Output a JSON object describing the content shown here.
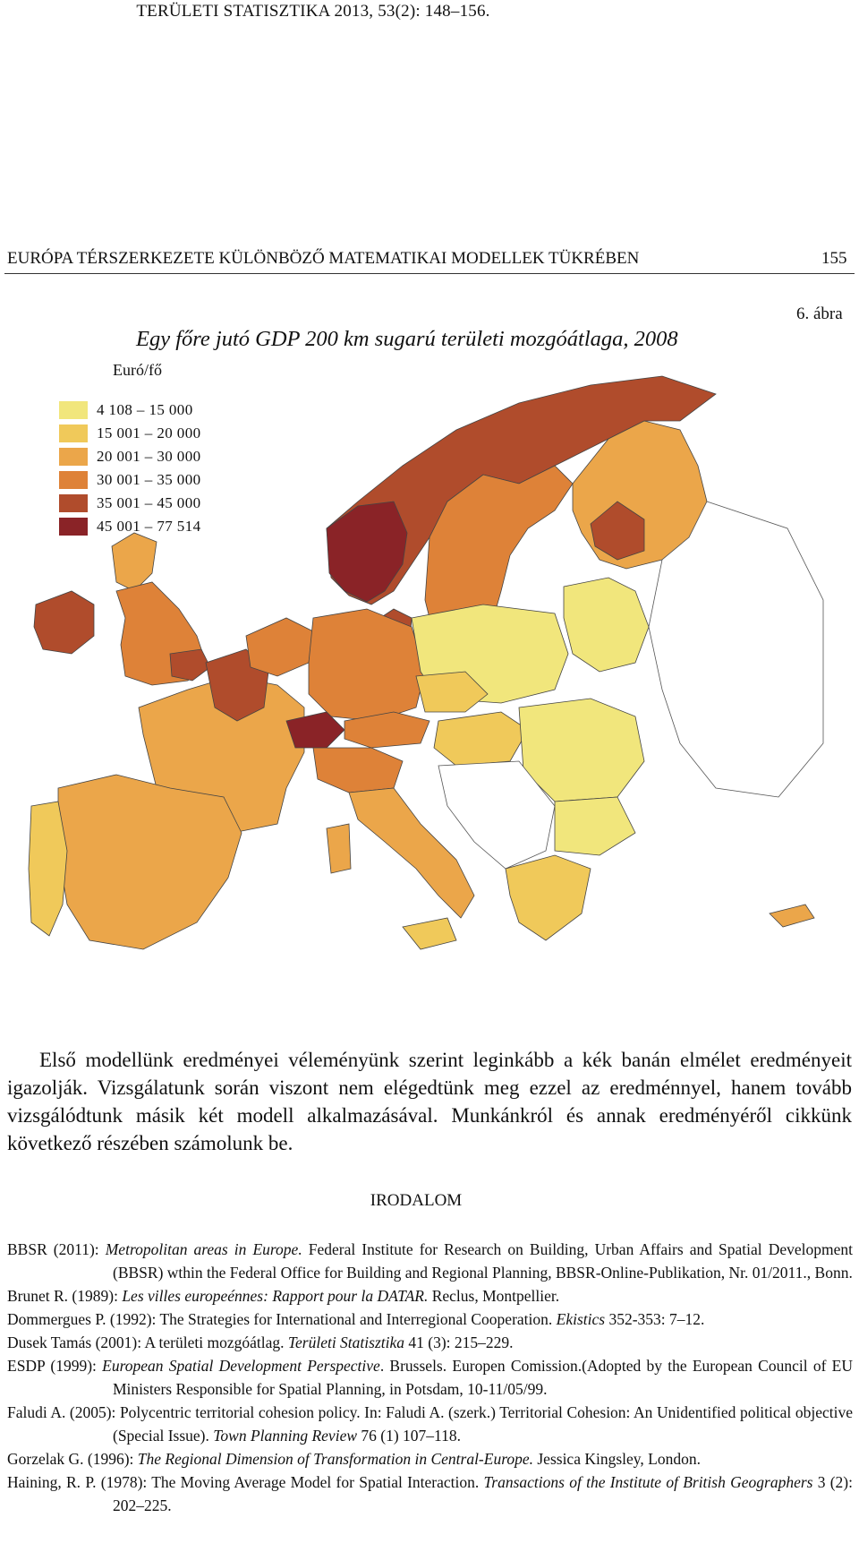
{
  "journal_header": "TERÜLETI STATISZTIKA 2013, 53(2): 148–156.",
  "running_title": "EURÓPA TÉRSZERKEZETE KÜLÖNBÖZŐ MATEMATIKAI MODELLEK TÜKRÉBEN",
  "page_number": "155",
  "figure": {
    "number": "6. ábra",
    "title": "Egy főre jutó GDP 200 km sugarú területi mozgóátlaga, 2008",
    "legend_unit": "Euró/fő",
    "legend": [
      {
        "label": "4 108 – 15 000",
        "color": "#f1e67c"
      },
      {
        "label": "15 001 – 20 000",
        "color": "#f0c95a"
      },
      {
        "label": "20 001 – 30 000",
        "color": "#eba64a"
      },
      {
        "label": "30 001 – 35 000",
        "color": "#de8238"
      },
      {
        "label": "35 001 – 45 000",
        "color": "#b04c2c"
      },
      {
        "label": "45 001 – 77 514",
        "color": "#8a2327"
      }
    ]
  },
  "body": {
    "paragraph": "Első modellünk eredményei véleményünk szerint leginkább a kék banán elmélet eredményeit igazolják. Vizsgálatunk során viszont nem elégedtünk meg ezzel az eredménnyel, hanem tovább vizsgálódtunk másik két modell alkalmazásával. Munkánkról és annak eredményéről cikkünk következő részében számolunk be."
  },
  "references_heading": "IRODALOM",
  "references": [
    {
      "a": "BBSR (2011): ",
      "t": "Metropolitan areas in Europe.",
      "r": " Federal Institute for Research on Building, Urban Affairs and Spatial Development (BBSR) wthin the Federal Office for Building and Regional Planning, BBSR-Online-Publikation, Nr. 01/2011., Bonn."
    },
    {
      "a": "Brunet R. (1989): ",
      "t": "Les villes europeénnes: Rapport pour la DATAR.",
      "r": " Reclus, Montpellier."
    },
    {
      "a": "Dommergues P. (1992): The Strategies for International and Interregional Cooperation. ",
      "t": "Ekistics",
      "r": " 352-353: 7–12."
    },
    {
      "a": "Dusek Tamás (2001): A területi mozgóátlag. ",
      "t": "Területi Statisztika",
      "r": " 41 (3): 215–229."
    },
    {
      "a": "ESDP (1999): ",
      "t": "European Spatial Development Perspective",
      "r": ". Brussels. Europen Comission.(Adopted by the European Council of EU Ministers Responsible for Spatial Planning, in Potsdam, 10-11/05/99."
    },
    {
      "a": "Faludi A. (2005): Polycentric territorial cohesion policy. In: Faludi A. (szerk.) Territorial Cohesion: An Unidentified political objective (Special Issue). ",
      "t": "Town Planning Review",
      "r": " 76 (1) 107–118."
    },
    {
      "a": "Gorzelak G. (1996): ",
      "t": "The Regional Dimension of Transformation in Central-Europe.",
      "r": " Jessica Kingsley, London."
    },
    {
      "a": "Haining, R. P. (1978): The Moving Average Model for Spatial Interaction. ",
      "t": "Transactions of the Institute of British Geographers",
      "r": " 3 (2): 202–225."
    }
  ]
}
